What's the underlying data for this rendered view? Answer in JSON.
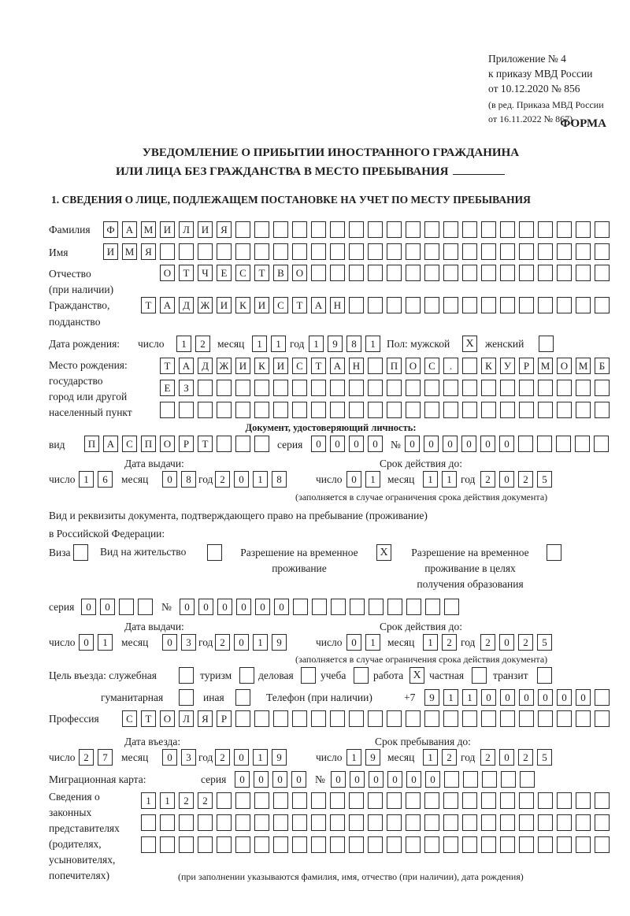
{
  "header": {
    "appendix": [
      "Приложение № 4",
      "к приказу МВД России",
      "от 10.12.2020 № 856"
    ],
    "edition": [
      "(в ред. Приказа МВД России",
      "от 16.11.2022 № 867)"
    ],
    "form_label": "ФОРМА",
    "title_line1": "УВЕДОМЛЕНИЕ О ПРИБЫТИИ ИНОСТРАННОГО ГРАЖДАНИНА",
    "title_line2": "ИЛИ ЛИЦА БЕЗ ГРАЖДАНСТВА В МЕСТО ПРЕБЫВАНИЯ",
    "section1": "1. СВЕДЕНИЯ О ЛИЦЕ, ПОДЛЕЖАЩЕМ ПОСТАНОВКЕ НА УЧЕТ ПО МЕСТУ ПРЕБЫВАНИЯ"
  },
  "person": {
    "surname_label": "Фамилия",
    "surname": "ФАМИЛИЯ",
    "name_label": "Имя",
    "name": "ИМЯ",
    "patronymic_label": "Отчество",
    "patronymic_note": "(при наличии)",
    "patronymic": "ОТЧЕСТВО",
    "citizenship_label": "Гражданство,",
    "citizenship_label2": "подданство",
    "citizenship": "ТАДЖИКИСТАН",
    "dob_label": "Дата рождения:",
    "day_label": "число",
    "month_label": "месяц",
    "year_label": "год",
    "dob_day": "12",
    "dob_month": "11",
    "dob_year": "1981",
    "sex_label": "Пол: мужской",
    "female_label": "женский",
    "male_mark": "X",
    "female_mark": "",
    "birthplace_labels": [
      "Место рождения:",
      "государство",
      "город или другой",
      "населенный пункт"
    ],
    "birthplace_rows": [
      "ТАДЖИКИСТАН ПОС. КУРМОМБ",
      "ЕЗ",
      ""
    ]
  },
  "id_document": {
    "heading": "Документ, удостоверяющий личность:",
    "kind_label": "вид",
    "kind": "ПАСПОРТ",
    "series_label": "серия",
    "series": "0000",
    "number_label": "№",
    "number": "000000",
    "issue_label": "Дата выдачи:",
    "issue_day": "16",
    "issue_month": "08",
    "issue_year": "2018",
    "valid_label": "Срок действия до:",
    "valid_day": "01",
    "valid_month": "11",
    "valid_year": "2025",
    "valid_note": "(заполняется в случае ограничения срока действия документа)"
  },
  "stay_document": {
    "heading1": "Вид и реквизиты документа, подтверждающего право на пребывание (проживание)",
    "heading2": "в Российской Федерации:",
    "visa_label": "Виза",
    "visa_mark": "",
    "residence_label": "Вид на жительство",
    "residence_mark": "",
    "trp_label1": "Разрешение на временное",
    "trp_label2": "проживание",
    "trp_mark": "X",
    "trpe_label1": "Разрешение на временное",
    "trpe_label2": "проживание в целях",
    "trpe_label3": "получения образования",
    "trpe_mark": "",
    "series_label": "серия",
    "series": "00",
    "number_label": "№",
    "number": "000000",
    "issue_label": "Дата выдачи:",
    "issue_day": "01",
    "issue_month": "03",
    "issue_year": "2019",
    "valid_label": "Срок действия до:",
    "valid_day": "01",
    "valid_month": "12",
    "valid_year": "2025",
    "valid_note": "(заполняется в случае ограничения срока действия документа)"
  },
  "purpose": {
    "label": "Цель въезда: служебная",
    "official_mark": "",
    "tourism_label": "туризм",
    "tourism_mark": "",
    "business_label": "деловая",
    "business_mark": "",
    "study_label": "учеба",
    "study_mark": "",
    "work_label": "работа",
    "work_mark": "X",
    "private_label": "частная",
    "private_mark": "",
    "transit_label": "транзит",
    "transit_mark": "",
    "humanitarian_label": "гуманитарная",
    "humanitarian_mark": "",
    "other_label": "иная",
    "other_mark": ""
  },
  "contact": {
    "phone_label": "Телефон (при наличии)",
    "phone_prefix": "+7",
    "phone": "911000000"
  },
  "profession": {
    "label": "Профессия",
    "value": "СТОЛЯР"
  },
  "entry": {
    "entry_label": "Дата въезда:",
    "entry_day": "27",
    "entry_month": "03",
    "entry_year": "2019",
    "stay_label": "Срок пребывания до:",
    "stay_day": "19",
    "stay_month": "12",
    "stay_year": "2025"
  },
  "migration_card": {
    "label": "Миграционная карта:",
    "series_label": "серия",
    "series": "0000",
    "number_label": "№",
    "number": "000000"
  },
  "representatives": {
    "labels": [
      "Сведения о",
      "законных",
      "представителях",
      "(родителях,",
      "усыновителях,",
      "попечителях)"
    ],
    "rows": [
      "1122",
      "",
      ""
    ],
    "note": "(при заполнении указываются фамилия, имя, отчество (при наличии), дата рождения)"
  }
}
